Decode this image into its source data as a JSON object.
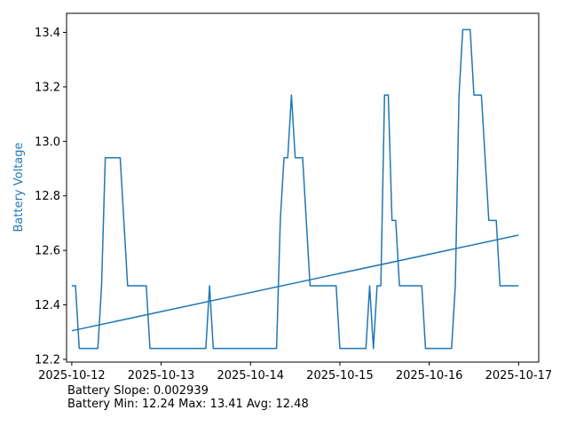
{
  "chart_data": {
    "type": "line",
    "ylabel": "Battery Voltage",
    "ylabel_color": "#1f77b4",
    "line_color": "#1f77b4",
    "xlim": [
      "2025-10-11 22:36",
      "2025-10-17 05:24"
    ],
    "ylim": [
      12.19,
      13.47
    ],
    "grid": false,
    "x_ticks": [
      "2025-10-12",
      "2025-10-13",
      "2025-10-14",
      "2025-10-15",
      "2025-10-16",
      "2025-10-17"
    ],
    "y_ticks": [
      "12.2",
      "12.4",
      "12.6",
      "12.8",
      "13.0",
      "13.2",
      "13.4"
    ],
    "series": [
      {
        "values": [
          [
            "2025-10-12 00:00",
            12.47
          ],
          [
            "2025-10-12 01:00",
            12.47
          ],
          [
            "2025-10-12 02:00",
            12.24
          ],
          [
            "2025-10-12 07:00",
            12.24
          ],
          [
            "2025-10-12 08:00",
            12.47
          ],
          [
            "2025-10-12 09:00",
            12.94
          ],
          [
            "2025-10-12 13:00",
            12.94
          ],
          [
            "2025-10-12 15:00",
            12.47
          ],
          [
            "2025-10-12 20:00",
            12.47
          ],
          [
            "2025-10-12 21:00",
            12.24
          ],
          [
            "2025-10-13 12:00",
            12.24
          ],
          [
            "2025-10-13 13:00",
            12.47
          ],
          [
            "2025-10-13 14:00",
            12.24
          ],
          [
            "2025-10-14 07:00",
            12.24
          ],
          [
            "2025-10-14 08:00",
            12.71
          ],
          [
            "2025-10-14 09:00",
            12.94
          ],
          [
            "2025-10-14 10:00",
            12.94
          ],
          [
            "2025-10-14 11:00",
            13.17
          ],
          [
            "2025-10-14 12:00",
            12.94
          ],
          [
            "2025-10-14 14:00",
            12.94
          ],
          [
            "2025-10-14 16:00",
            12.47
          ],
          [
            "2025-10-14 23:00",
            12.47
          ],
          [
            "2025-10-15 00:00",
            12.24
          ],
          [
            "2025-10-15 07:00",
            12.24
          ],
          [
            "2025-10-15 08:00",
            12.47
          ],
          [
            "2025-10-15 09:00",
            12.24
          ],
          [
            "2025-10-15 10:00",
            12.47
          ],
          [
            "2025-10-15 11:00",
            12.47
          ],
          [
            "2025-10-15 12:00",
            13.17
          ],
          [
            "2025-10-15 13:00",
            13.17
          ],
          [
            "2025-10-15 14:00",
            12.71
          ],
          [
            "2025-10-15 15:00",
            12.71
          ],
          [
            "2025-10-15 16:00",
            12.47
          ],
          [
            "2025-10-15 22:00",
            12.47
          ],
          [
            "2025-10-15 23:00",
            12.24
          ],
          [
            "2025-10-16 06:00",
            12.24
          ],
          [
            "2025-10-16 07:00",
            12.47
          ],
          [
            "2025-10-16 08:00",
            13.17
          ],
          [
            "2025-10-16 09:00",
            13.41
          ],
          [
            "2025-10-16 11:00",
            13.41
          ],
          [
            "2025-10-16 12:00",
            13.17
          ],
          [
            "2025-10-16 14:00",
            13.17
          ],
          [
            "2025-10-16 16:00",
            12.71
          ],
          [
            "2025-10-16 18:00",
            12.71
          ],
          [
            "2025-10-16 19:00",
            12.47
          ],
          [
            "2025-10-17 00:00",
            12.47
          ]
        ]
      },
      {
        "values": [
          [
            "2025-10-12 00:00",
            12.305
          ],
          [
            "2025-10-17 00:00",
            12.656
          ]
        ]
      }
    ]
  },
  "stats": {
    "slope_text": "Battery Slope: 0.002939",
    "minmax_text": "Battery Min: 12.24 Max: 13.41 Avg: 12.48"
  }
}
